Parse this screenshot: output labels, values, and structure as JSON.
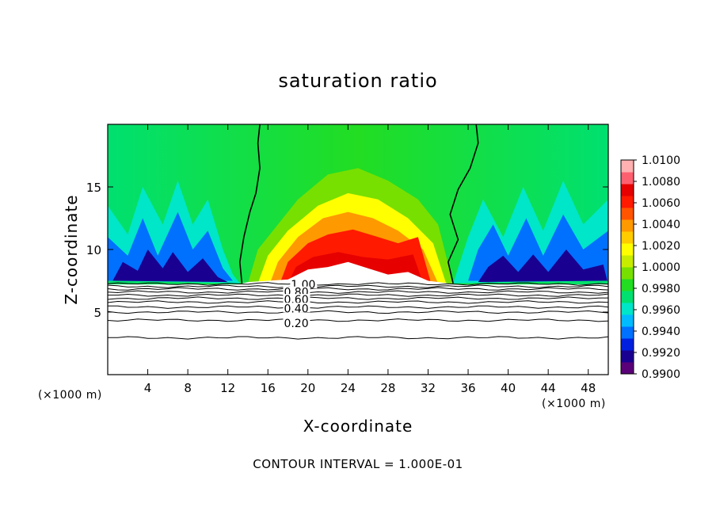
{
  "chart_data": {
    "type": "heatmap",
    "title": "saturation ratio",
    "xlabel": "X-coordinate",
    "ylabel": "Z-coordinate",
    "x_unit": "(×1000 m)",
    "xlim": [
      0,
      50
    ],
    "ylim": [
      0,
      20
    ],
    "x_ticks": [
      4,
      8,
      12,
      16,
      20,
      24,
      28,
      32,
      36,
      40,
      44,
      48
    ],
    "y_ticks": [
      5,
      10,
      15
    ],
    "footer": "CONTOUR INTERVAL = 1.000E-01",
    "colorbar": {
      "min": 0.99,
      "max": 1.01,
      "labels": [
        "1.0100",
        "1.0080",
        "1.0060",
        "1.0040",
        "1.0020",
        "1.0000",
        "0.9980",
        "0.9960",
        "0.9940",
        "0.9920",
        "0.9900"
      ],
      "colors": [
        "#5a0078",
        "#1a0090",
        "#0020e0",
        "#0070ff",
        "#00bbff",
        "#00e6c8",
        "#00e070",
        "#22dd22",
        "#77e000",
        "#c8ec00",
        "#ffff00",
        "#ffcc00",
        "#ff9900",
        "#ff5500",
        "#ff1a00",
        "#e60000",
        "#ff6070",
        "#ffb0b0"
      ]
    },
    "contour_lines": [
      {
        "label": "1.00",
        "x": 18.3,
        "z": 7.2
      },
      {
        "label": "0.80",
        "x": 17.6,
        "z": 6.6
      },
      {
        "label": "0.60",
        "x": 17.6,
        "z": 6.0
      },
      {
        "label": "0.40",
        "x": 17.6,
        "z": 5.3
      },
      {
        "label": "0.20",
        "x": 17.6,
        "z": 4.1
      }
    ]
  }
}
